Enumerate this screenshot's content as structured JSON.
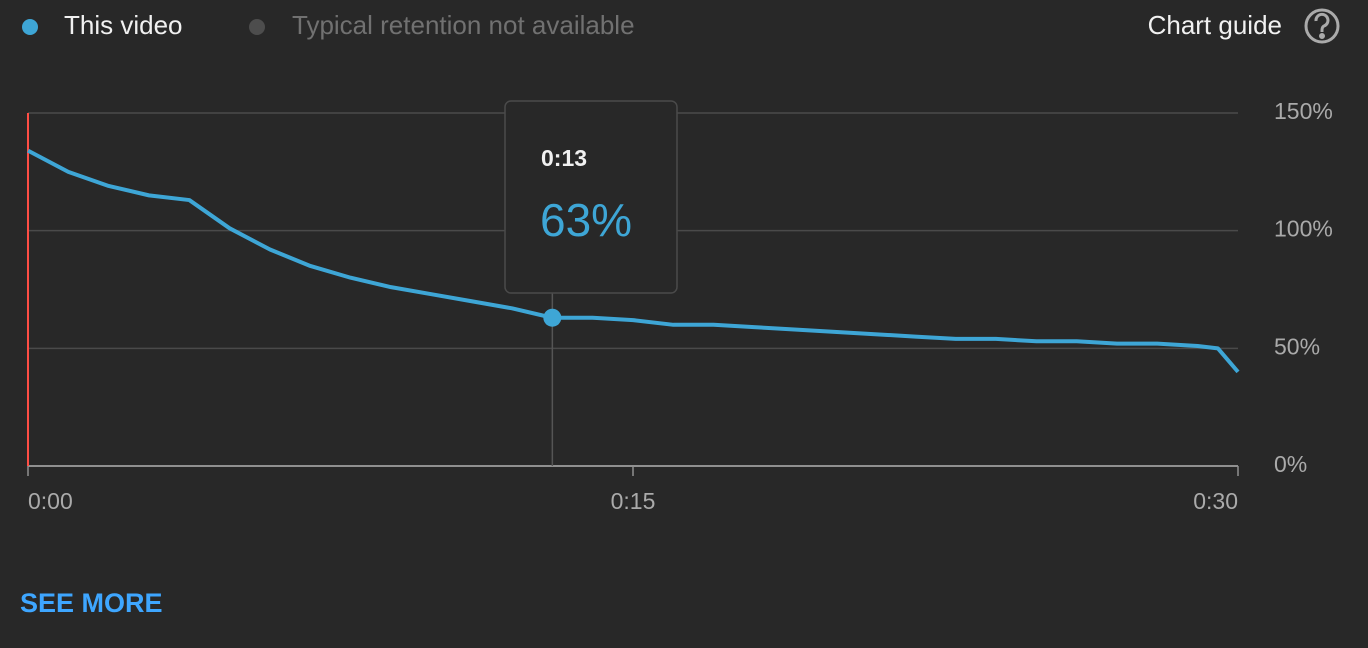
{
  "chart_data": {
    "type": "line",
    "series": [
      {
        "name": "This video",
        "color": "#3ea6d6",
        "x": [
          0,
          1,
          2,
          3,
          4,
          5,
          6,
          7,
          8,
          9,
          10,
          11,
          12,
          13,
          14,
          15,
          16,
          17,
          18,
          19,
          20,
          21,
          22,
          23,
          24,
          25,
          26,
          27,
          28,
          29,
          29.5,
          30
        ],
        "values": [
          134,
          125,
          119,
          115,
          113,
          101,
          92,
          85,
          80,
          76,
          73,
          70,
          67,
          63,
          63,
          62,
          60,
          60,
          59,
          58,
          57,
          56,
          55,
          54,
          54,
          53,
          53,
          52,
          52,
          51,
          50,
          40
        ]
      }
    ],
    "unavailable_series": {
      "name": "Typical retention not available",
      "color": "#4d4d4d"
    },
    "xlim": [
      0,
      30
    ],
    "xticks": [
      {
        "value": 0,
        "label": "0:00"
      },
      {
        "value": 15,
        "label": "0:15"
      },
      {
        "value": 30,
        "label": "0:30"
      }
    ],
    "ylim": [
      0,
      150
    ],
    "yticks": [
      {
        "value": 0,
        "label": "0%"
      },
      {
        "value": 50,
        "label": "50%"
      },
      {
        "value": 100,
        "label": "100%"
      },
      {
        "value": 150,
        "label": "150%"
      }
    ],
    "grid": true,
    "tooltip": {
      "x": 13,
      "time": "0:13",
      "value": 63,
      "value_label": "63%"
    }
  },
  "ui": {
    "chart_guide": "Chart guide",
    "see_more": "SEE MORE"
  }
}
